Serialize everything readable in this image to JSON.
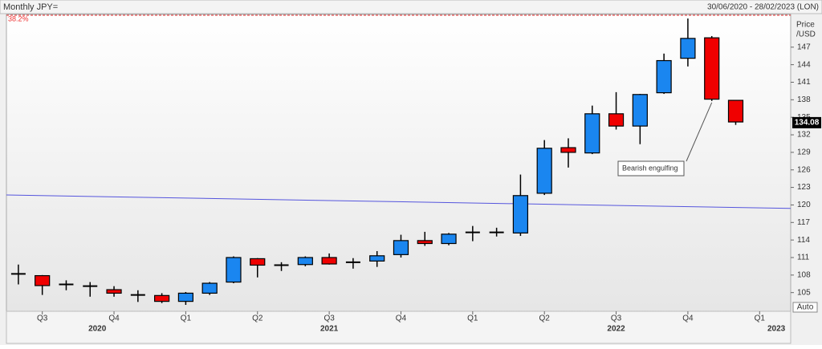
{
  "chart_data": {
    "type": "candlestick",
    "title": "Monthly JPY=",
    "date_range": "30/06/2020 - 28/02/2023 (LON)",
    "y_axis_title": [
      "Price",
      "/USD"
    ],
    "categories": [
      null,
      null,
      null,
      null,
      null,
      null,
      null,
      null,
      null,
      null,
      null,
      null,
      null,
      null,
      null,
      null,
      null,
      null,
      null,
      null,
      null,
      null,
      null,
      null,
      null,
      null,
      null,
      null,
      null,
      null,
      null
    ],
    "open": [
      108.2,
      107.9,
      106.4,
      106.1,
      105.5,
      104.6,
      104.5,
      103.5,
      104.9,
      106.8,
      110.8,
      109.7,
      109.8,
      111.0,
      110.2,
      110.4,
      111.5,
      113.9,
      113.4,
      115.3,
      115.3,
      115.2,
      122.0,
      129.8,
      128.9,
      135.6,
      133.5,
      139.2,
      145.1,
      148.6,
      137.9
    ],
    "high": [
      109.8,
      108.0,
      107.1,
      106.8,
      106.1,
      105.4,
      104.9,
      105.1,
      106.8,
      111.2,
      110.9,
      110.2,
      111.2,
      111.7,
      110.9,
      112.1,
      114.9,
      115.4,
      115.2,
      116.4,
      116.1,
      125.2,
      131.1,
      131.4,
      137.0,
      139.3,
      139.0,
      145.9,
      151.9,
      148.9,
      137.9
    ],
    "low": [
      106.4,
      104.6,
      105.4,
      104.3,
      104.3,
      103.4,
      103.2,
      102.9,
      104.6,
      106.6,
      107.6,
      108.7,
      109.5,
      109.8,
      109.1,
      109.4,
      111.0,
      113.0,
      113.1,
      113.8,
      114.6,
      114.7,
      121.7,
      126.4,
      128.7,
      132.9,
      130.4,
      139.0,
      143.7,
      137.8,
      133.7
    ],
    "close": [
      108.2,
      106.2,
      106.4,
      106.1,
      104.9,
      104.6,
      103.5,
      104.9,
      106.6,
      111.0,
      109.7,
      109.7,
      111.0,
      109.9,
      110.2,
      111.3,
      113.9,
      113.4,
      115.0,
      115.3,
      115.3,
      121.6,
      129.7,
      129.0,
      135.6,
      133.5,
      138.9,
      144.7,
      148.5,
      138.1,
      134.2
    ],
    "colors": {
      "up": "#1a86f0",
      "down": "#f00000",
      "flat": "#000000"
    },
    "xlim": [
      -0.5,
      32.3
    ],
    "xticks": [
      {
        "value": 1,
        "label": "Q3"
      },
      {
        "value": 4,
        "label": "Q4"
      },
      {
        "value": 7,
        "label": "Q1"
      },
      {
        "value": 10,
        "label": "Q2"
      },
      {
        "value": 13,
        "label": "Q3"
      },
      {
        "value": 16,
        "label": "Q4"
      },
      {
        "value": 19,
        "label": "Q1"
      },
      {
        "value": 22,
        "label": "Q2"
      },
      {
        "value": 25,
        "label": "Q3"
      },
      {
        "value": 28,
        "label": "Q4"
      },
      {
        "value": 31,
        "label": "Q1"
      }
    ],
    "year_labels": [
      {
        "value": 3.3,
        "label": "2020"
      },
      {
        "value": 13,
        "label": "2021"
      },
      {
        "value": 25,
        "label": "2022"
      },
      {
        "value": 31.7,
        "label": "2023"
      }
    ],
    "ylim": [
      101.8,
      152.6
    ],
    "yticks": [
      105,
      108,
      111,
      114,
      117,
      120,
      123,
      126,
      129,
      132,
      135,
      138,
      141,
      144,
      147
    ],
    "last_price": 134.08,
    "fib_level": {
      "label": "38.2%",
      "value": 152.6
    },
    "trendline": {
      "x": [
        -0.5,
        32.3
      ],
      "values": [
        121.7,
        119.4
      ]
    },
    "annotation": {
      "text": "Bearish engulfing",
      "target": 29
    },
    "auto_button": "Auto"
  }
}
